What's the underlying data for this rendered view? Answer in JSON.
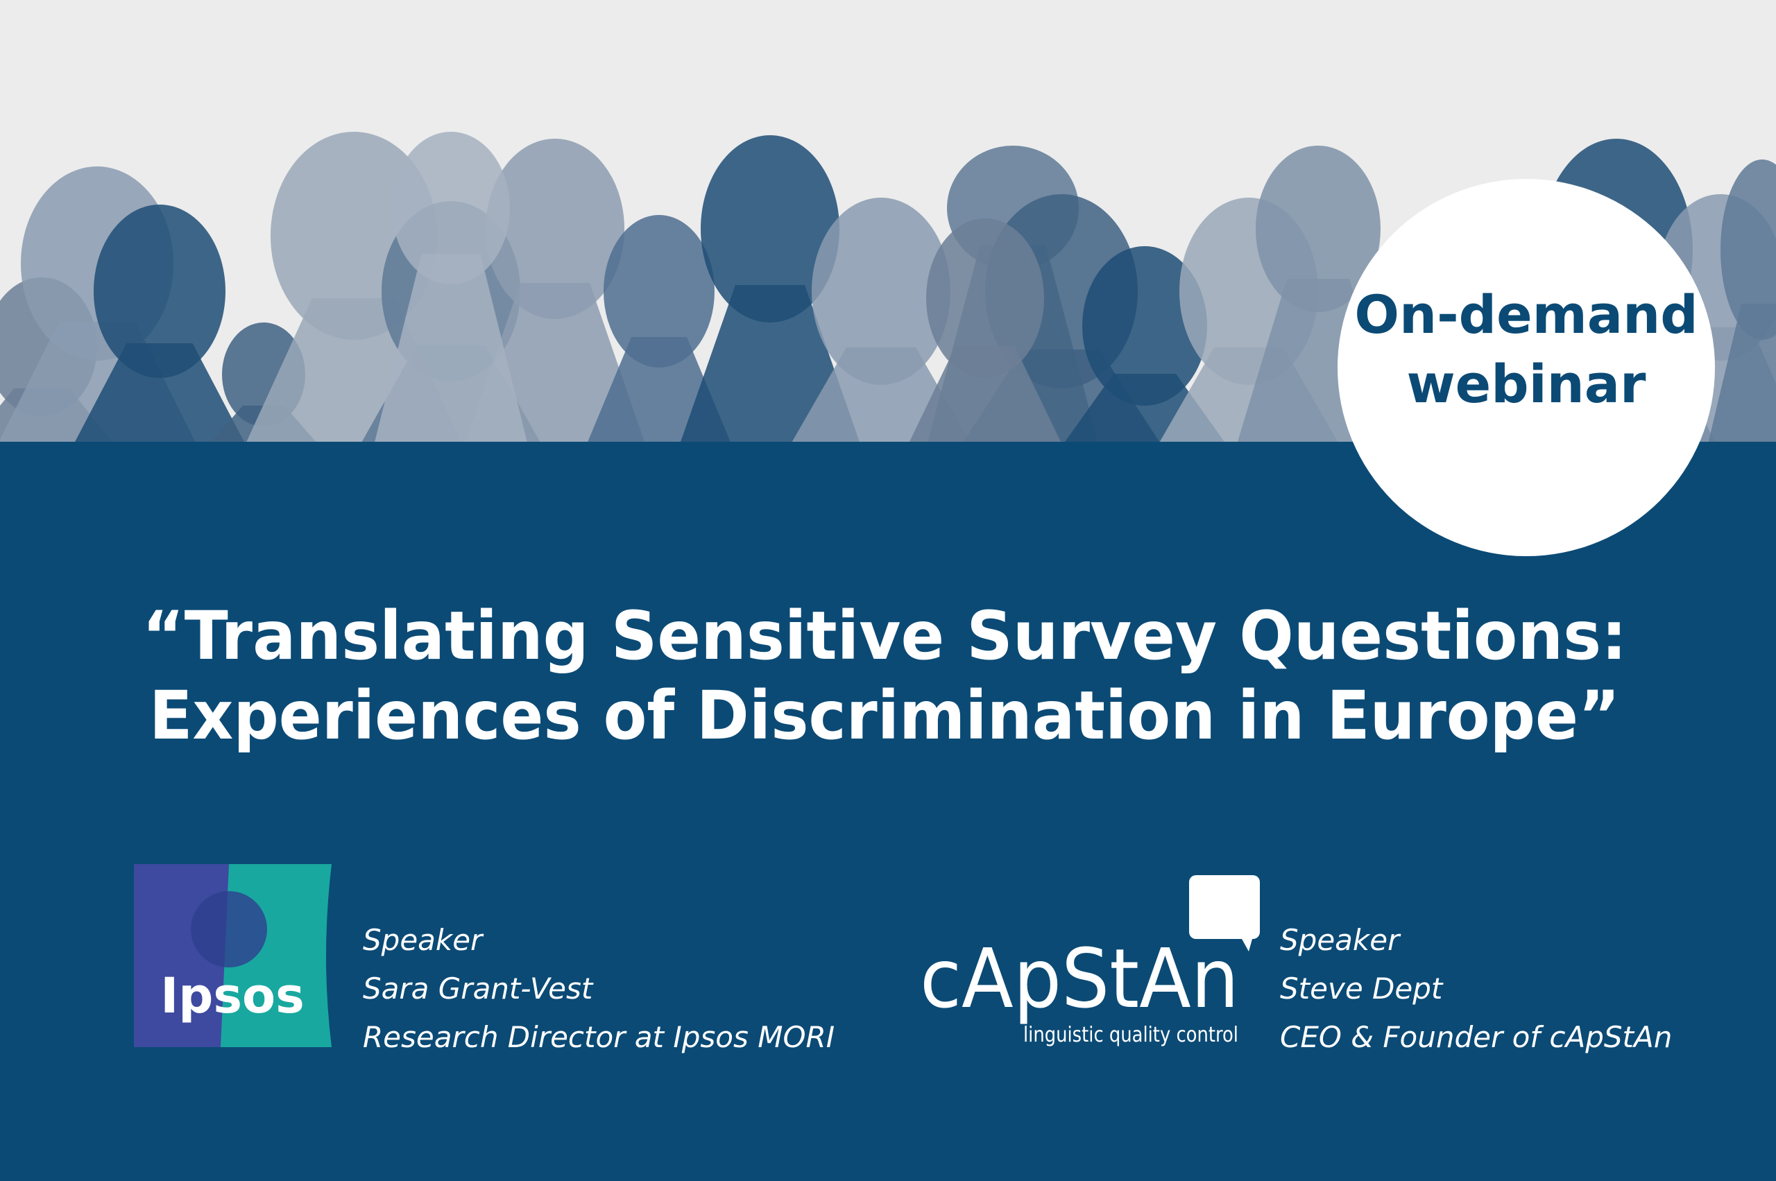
{
  "badge": {
    "lines": [
      "On-demand",
      "webinar"
    ]
  },
  "title": {
    "lines": [
      "“Translating Sensitive Survey Questions:",
      "Experiences of Discrimination in Europe”"
    ]
  },
  "speakers": [
    {
      "logo": {
        "name": "Ipsos"
      },
      "role": "Speaker",
      "name": "Sara Grant-Vest",
      "position": "Research Director at Ipsos MORI"
    },
    {
      "logo": {
        "name": "cApStAn",
        "tagline": "linguistic quality control"
      },
      "role": "Speaker",
      "name": "Steve Dept",
      "position": "CEO & Founder of cApStAn"
    }
  ]
}
